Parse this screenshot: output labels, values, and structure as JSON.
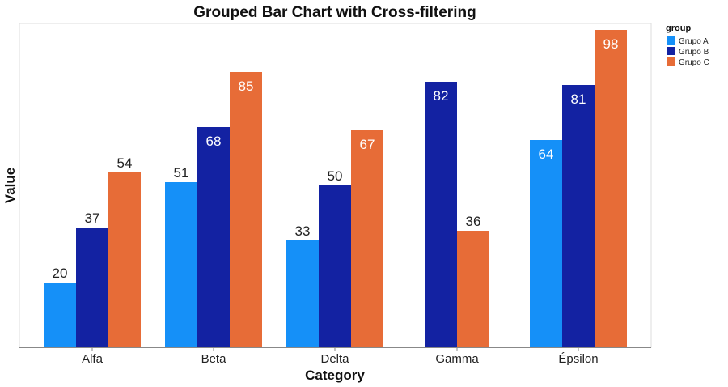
{
  "chart_data": {
    "type": "bar",
    "title": "Grouped Bar Chart with Cross-filtering",
    "xlabel": "Category",
    "ylabel": "Value",
    "categories": [
      "Alfa",
      "Beta",
      "Delta",
      "Gamma",
      "Épsilon"
    ],
    "ylim": [
      0,
      100
    ],
    "grid": false,
    "legend": {
      "title": "group",
      "placement": "top-right"
    },
    "series": [
      {
        "name": "Grupo A",
        "color": "#1590f8",
        "values": [
          20,
          51,
          33,
          null,
          64
        ],
        "label_positions": [
          "outside",
          "outside",
          "outside",
          null,
          "inside"
        ]
      },
      {
        "name": "Grupo B",
        "color": "#1322a2",
        "values": [
          37,
          68,
          50,
          82,
          81
        ],
        "label_positions": [
          "outside",
          "inside",
          "outside",
          "inside",
          "inside"
        ]
      },
      {
        "name": "Grupo C",
        "color": "#e76c37",
        "values": [
          54,
          85,
          67,
          36,
          98
        ],
        "label_positions": [
          "outside",
          "inside",
          "inside",
          "outside",
          "inside"
        ]
      }
    ],
    "gamma_override": {
      "note_free": true
    }
  }
}
